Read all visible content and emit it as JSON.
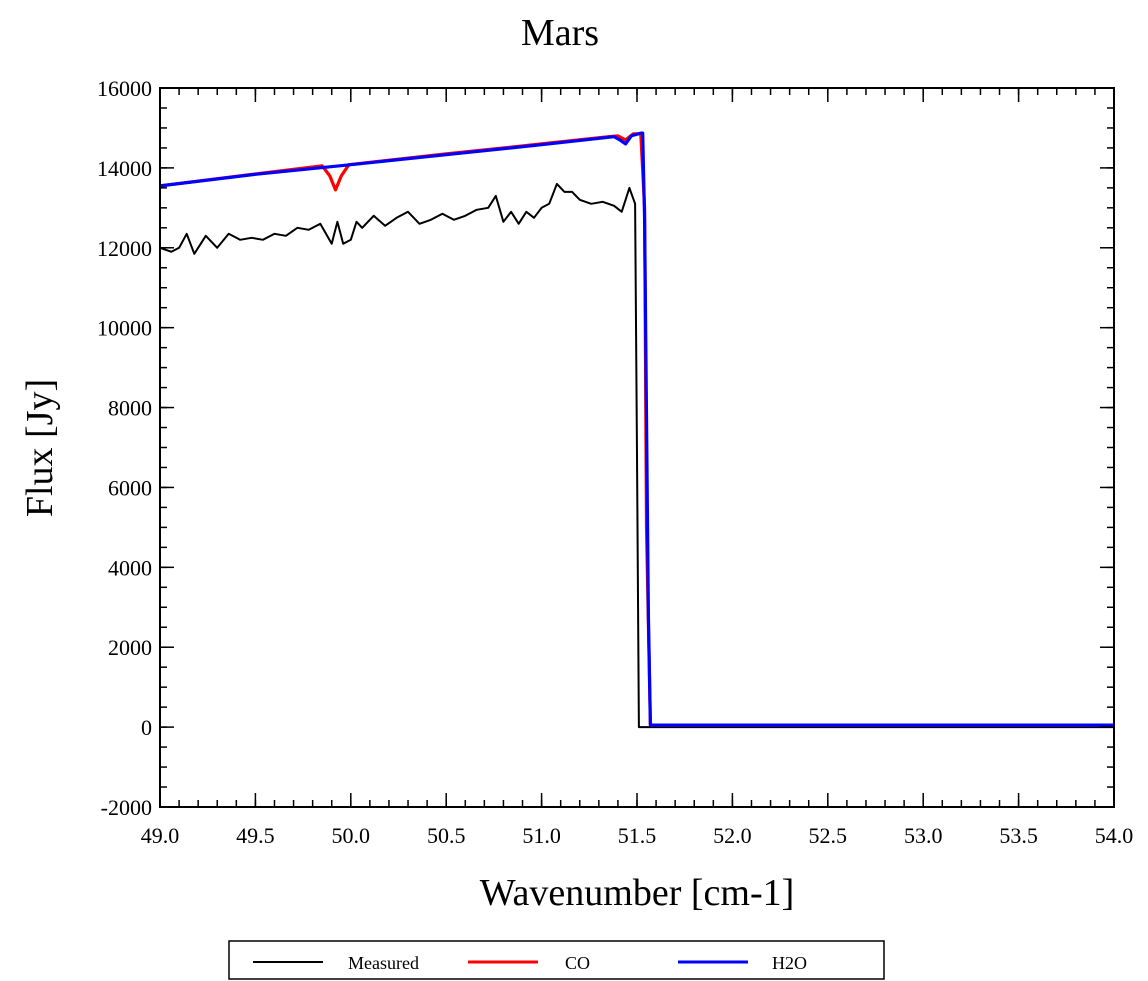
{
  "chart_data": {
    "type": "line",
    "title": "Mars",
    "xlabel": "Wavenumber [cm-1]",
    "ylabel": "Flux [Jy]",
    "xlim": [
      49.0,
      54.0
    ],
    "ylim": [
      -2000,
      16000
    ],
    "xticks": [
      "49.0",
      "49.5",
      "50.0",
      "50.5",
      "51.0",
      "51.5",
      "52.0",
      "52.5",
      "53.0",
      "53.5",
      "54.0"
    ],
    "yticks": [
      "-2000",
      "0",
      "2000",
      "4000",
      "6000",
      "8000",
      "10000",
      "12000",
      "14000",
      "16000"
    ],
    "grid": false,
    "legend_position": "bottom",
    "colors": {
      "Measured": "#000000",
      "CO": "#ff0000",
      "H2O": "#0000ff"
    },
    "series": [
      {
        "name": "Measured",
        "x": [
          49.0,
          49.06,
          49.1,
          49.14,
          49.18,
          49.24,
          49.3,
          49.36,
          49.42,
          49.48,
          49.54,
          49.6,
          49.66,
          49.72,
          49.78,
          49.84,
          49.9,
          49.93,
          49.96,
          50.0,
          50.03,
          50.06,
          50.12,
          50.18,
          50.24,
          50.3,
          50.36,
          50.42,
          50.48,
          50.54,
          50.6,
          50.66,
          50.72,
          50.76,
          50.8,
          50.84,
          50.88,
          50.92,
          50.96,
          51.0,
          51.04,
          51.08,
          51.12,
          51.16,
          51.2,
          51.26,
          51.32,
          51.38,
          51.42,
          51.46,
          51.49,
          51.5,
          51.51,
          51.52,
          51.53,
          51.6,
          52.0,
          52.5,
          53.0,
          53.5,
          54.0
        ],
        "y": [
          12000,
          11900,
          12000,
          12350,
          11850,
          12300,
          12000,
          12350,
          12200,
          12250,
          12200,
          12350,
          12300,
          12500,
          12450,
          12600,
          12100,
          12650,
          12100,
          12200,
          12650,
          12500,
          12800,
          12550,
          12750,
          12900,
          12600,
          12700,
          12850,
          12700,
          12800,
          12950,
          13000,
          13300,
          12650,
          12900,
          12600,
          12900,
          12750,
          13000,
          13100,
          13600,
          13400,
          13400,
          13200,
          13100,
          13150,
          13050,
          12900,
          13500,
          13100,
          6800,
          0,
          0,
          0,
          0,
          0,
          0,
          0,
          0,
          0
        ]
      },
      {
        "name": "CO",
        "x": [
          49.0,
          49.5,
          49.85,
          49.89,
          49.92,
          49.95,
          49.99,
          50.5,
          51.0,
          51.35,
          51.4,
          51.44,
          51.48,
          51.52,
          51.54,
          51.55,
          51.57,
          51.6,
          52.0,
          52.5,
          53.0,
          53.5,
          54.0
        ],
        "y": [
          13550,
          13850,
          14050,
          13800,
          13450,
          13800,
          14080,
          14350,
          14600,
          14780,
          14800,
          14700,
          14850,
          14850,
          13000,
          5000,
          50,
          50,
          50,
          50,
          50,
          50,
          50
        ]
      },
      {
        "name": "H2O",
        "x": [
          49.0,
          49.5,
          50.0,
          50.5,
          51.0,
          51.38,
          51.41,
          51.44,
          51.47,
          51.52,
          51.53,
          51.54,
          51.55,
          51.56,
          51.57,
          51.58,
          52.0,
          52.5,
          53.0,
          53.5,
          54.0
        ],
        "y": [
          13550,
          13840,
          14080,
          14330,
          14580,
          14780,
          14700,
          14600,
          14800,
          14870,
          14870,
          12700,
          7800,
          2800,
          50,
          50,
          50,
          50,
          50,
          50,
          50
        ]
      }
    ]
  }
}
